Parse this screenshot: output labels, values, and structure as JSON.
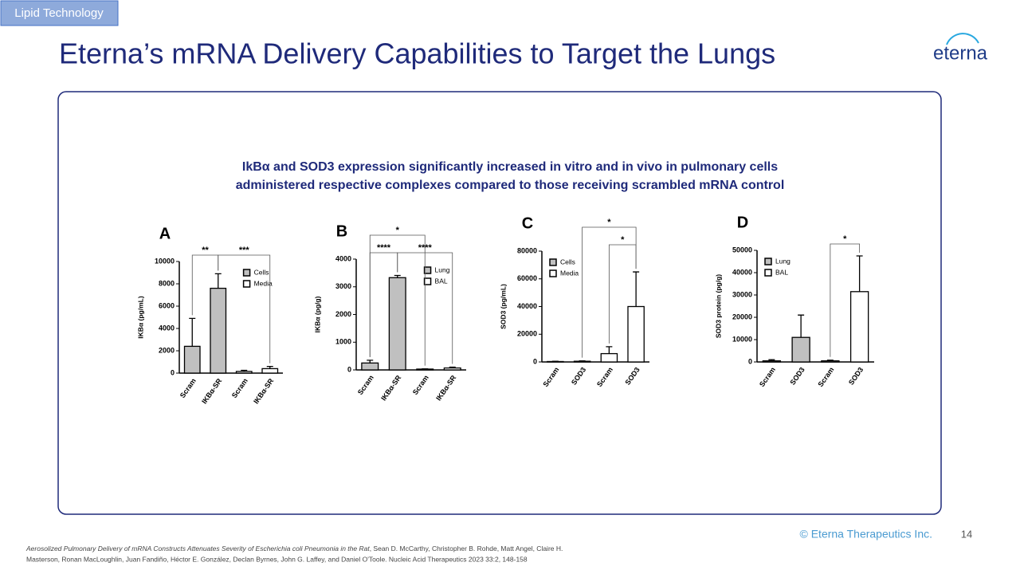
{
  "tag": "Lipid Technology",
  "title": "Eterna’s mRNA Delivery Capabilities to Target the Lungs",
  "logo": "eterna",
  "headline": [
    "IkBα and SOD3 expression significantly increased in vitro and in vivo in pulmonary cells",
    "administered respective complexes compared to those receiving scrambled mRNA control"
  ],
  "copyright": "© Eterna Therapeutics Inc.",
  "page": "14",
  "citation": {
    "title": "Aerosolized Pulmonary Delivery of mRNA Constructs Attenuates Severity of Escherichia coli Pneumonia in the Rat",
    "authors1": ", Sean D. McCarthy, Christopher B. Rohde, Matt Angel, Claire H.",
    "authors2": "Masterson, Ronan MacLoughlin, Juan Fandiño, Héctor E. González, Declan Byrnes, John G. Laffey, and Daniel O'Toole. Nucleic Acid Therapeutics 2023 33:2, 148-158"
  },
  "chart_data": [
    {
      "type": "bar",
      "label": "A",
      "ylabel": "IKBα (pg/mL)",
      "categories": [
        "Scram",
        "IKBα-SR",
        "Scram",
        "IKBα-SR"
      ],
      "series": [
        {
          "name": "Cells",
          "color": "#c0c0c0",
          "values": [
            2400,
            7600,
            null,
            null
          ],
          "errors": [
            2500,
            1300,
            null,
            null
          ]
        },
        {
          "name": "Media",
          "color": "#ffffff",
          "values": [
            null,
            null,
            150,
            400
          ],
          "errors": [
            null,
            null,
            100,
            200
          ]
        }
      ],
      "ylim": [
        0,
        10000
      ],
      "yticks": [
        0,
        2000,
        4000,
        6000,
        8000,
        10000
      ],
      "legend": "upper right",
      "annotations": [
        "**",
        "***"
      ]
    },
    {
      "type": "bar",
      "label": "B",
      "ylabel": "IKBα (pg/g)",
      "categories": [
        "Scram",
        "IKBα-SR",
        "Scram",
        "IKBα-SR"
      ],
      "series": [
        {
          "name": "Lung",
          "color": "#c0c0c0",
          "values": [
            250,
            3330,
            null,
            null
          ],
          "errors": [
            100,
            80,
            null,
            null
          ]
        },
        {
          "name": "BAL",
          "color": "#ffffff",
          "values": [
            null,
            null,
            30,
            70
          ],
          "errors": [
            null,
            null,
            10,
            30
          ]
        }
      ],
      "ylim": [
        0,
        4000
      ],
      "yticks": [
        0,
        1000,
        2000,
        3000,
        4000
      ],
      "legend": "upper right",
      "annotations": [
        "*",
        "****",
        "****"
      ]
    },
    {
      "type": "bar",
      "label": "C",
      "ylabel": "SOD3 (pg/mL)",
      "categories": [
        "Scram",
        "SOD3",
        "Scram",
        "SOD3"
      ],
      "series": [
        {
          "name": "Cells",
          "color": "#c0c0c0",
          "values": [
            300,
            500,
            null,
            null
          ],
          "errors": [
            200,
            300,
            null,
            null
          ]
        },
        {
          "name": "Media",
          "color": "#ffffff",
          "values": [
            null,
            null,
            6000,
            40000
          ],
          "errors": [
            null,
            null,
            5000,
            25000
          ]
        }
      ],
      "ylim": [
        0,
        80000
      ],
      "yticks": [
        0,
        20000,
        40000,
        60000,
        80000
      ],
      "legend": "upper left",
      "annotations": [
        "*",
        "*"
      ]
    },
    {
      "type": "bar",
      "label": "D",
      "ylabel": "SOD3 protein (pg/g)",
      "categories": [
        "Scram",
        "SOD3",
        "Scram",
        "SOD3"
      ],
      "series": [
        {
          "name": "Lung",
          "color": "#c0c0c0",
          "values": [
            500,
            11000,
            null,
            null
          ],
          "errors": [
            500,
            10000,
            null,
            null
          ]
        },
        {
          "name": "BAL",
          "color": "#ffffff",
          "values": [
            null,
            null,
            500,
            31500
          ],
          "errors": [
            null,
            null,
            300,
            16000
          ]
        }
      ],
      "ylim": [
        0,
        50000
      ],
      "yticks": [
        0,
        10000,
        20000,
        30000,
        40000,
        50000
      ],
      "legend": "upper left",
      "annotations": [
        "*"
      ]
    }
  ]
}
